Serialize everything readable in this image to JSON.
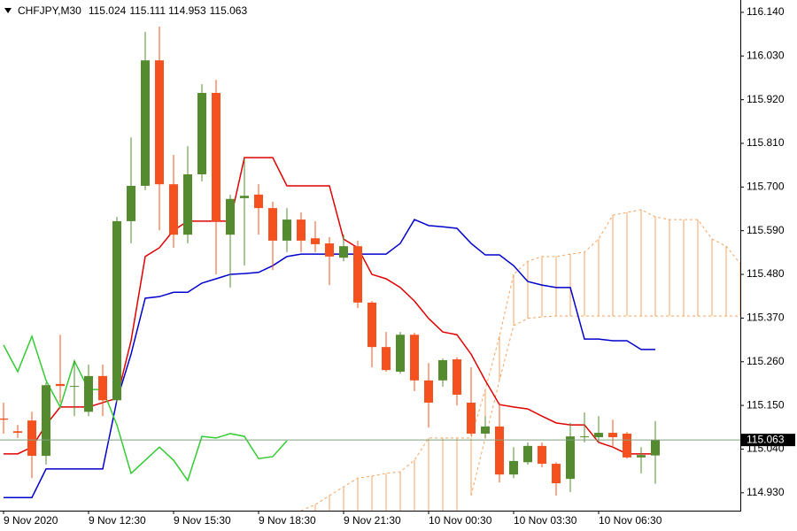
{
  "chart_data": {
    "type": "candlestick",
    "title": "CHFJPY,M30",
    "title_values": [
      115.024,
      115.111,
      114.953,
      115.063
    ],
    "categories": [
      "9 Nov 2020",
      null,
      null,
      null,
      null,
      null,
      "9 Nov 12:30",
      null,
      null,
      null,
      null,
      null,
      "9 Nov 15:30",
      null,
      null,
      null,
      null,
      null,
      "9 Nov 18:30",
      null,
      null,
      null,
      null,
      null,
      "9 Nov 21:30",
      null,
      null,
      null,
      null,
      null,
      "10 Nov 00:30",
      null,
      null,
      null,
      null,
      null,
      "10 Nov 03:30",
      null,
      null,
      null,
      null,
      null,
      "10 Nov 06:30",
      null,
      null,
      null,
      null,
      null,
      null,
      null,
      null,
      null,
      null
    ],
    "open": [
      115.117,
      115.085,
      115.112,
      115.023,
      115.204,
      115.197,
      115.134,
      115.224,
      115.163,
      115.614,
      115.703,
      116.019,
      115.707,
      115.58,
      115.732,
      115.937,
      115.58,
      115.672,
      115.681,
      115.647,
      115.565,
      115.618,
      115.571,
      115.558,
      115.522,
      115.551,
      115.409,
      115.297,
      115.235,
      115.328,
      115.213,
      115.213,
      115.266,
      115.157,
      115.079,
      115.097,
      114.976,
      115.007,
      115.048,
      115.003,
      114.965,
      115.07,
      115.07,
      115.081,
      115.079,
      115.019,
      115.024,
      null,
      null,
      null,
      null,
      null,
      null
    ],
    "high": [
      115.157,
      115.101,
      115.134,
      115.208,
      115.328,
      115.262,
      115.253,
      115.253,
      115.625,
      115.825,
      116.091,
      116.104,
      115.781,
      115.803,
      115.959,
      115.97,
      115.681,
      115.77,
      115.707,
      115.663,
      115.647,
      115.636,
      115.614,
      115.574,
      115.58,
      115.565,
      115.413,
      115.335,
      115.335,
      115.333,
      115.257,
      115.268,
      115.271,
      115.246,
      115.123,
      115.157,
      115.045,
      115.057,
      115.057,
      115.007,
      115.106,
      115.132,
      115.123,
      115.114,
      115.083,
      115.045,
      115.111,
      null,
      null,
      null,
      null,
      null,
      null
    ],
    "low": [
      115.079,
      115.068,
      114.967,
      115.001,
      115.157,
      115.123,
      115.123,
      115.123,
      115.157,
      115.558,
      115.692,
      115.591,
      115.547,
      115.558,
      115.714,
      115.48,
      115.447,
      115.502,
      115.58,
      115.491,
      115.536,
      115.536,
      115.536,
      115.453,
      115.513,
      115.395,
      115.246,
      115.235,
      115.23,
      115.186,
      115.094,
      115.197,
      115.15,
      115.074,
      115.068,
      114.956,
      114.967,
      115.001,
      114.994,
      114.923,
      114.932,
      115.057,
      115.057,
      115.048,
      115.016,
      114.979,
      114.953,
      null,
      null,
      null,
      null,
      null,
      null
    ],
    "close": [
      115.114,
      115.081,
      115.023,
      115.201,
      115.199,
      115.199,
      115.224,
      115.163,
      115.614,
      115.703,
      116.019,
      115.707,
      115.58,
      115.732,
      115.937,
      115.614,
      115.67,
      115.678,
      115.647,
      115.565,
      115.618,
      115.565,
      115.556,
      115.525,
      115.551,
      115.409,
      115.297,
      115.239,
      115.328,
      115.213,
      115.157,
      115.264,
      115.177,
      115.079,
      115.097,
      114.976,
      115.01,
      115.048,
      115.003,
      114.954,
      115.072,
      115.072,
      115.081,
      115.07,
      115.019,
      115.025,
      115.063,
      null,
      null,
      null,
      null,
      null,
      null
    ],
    "up_color": "#558b2f",
    "down_color": "#f4511e",
    "lines": [
      {
        "color": "#e00000",
        "values": [
          115.028,
          115.028,
          115.045,
          115.101,
          115.146,
          115.146,
          115.146,
          115.157,
          115.168,
          115.313,
          115.525,
          115.547,
          115.591,
          115.614,
          115.614,
          115.614,
          115.614,
          115.774,
          115.774,
          115.774,
          115.703,
          115.703,
          115.703,
          115.703,
          115.569,
          115.547,
          115.48,
          115.469,
          115.447,
          115.413,
          115.369,
          115.335,
          115.328,
          115.279,
          115.213,
          115.152,
          115.146,
          115.141,
          115.123,
          115.106,
          115.101,
          115.101,
          115.057,
          115.045,
          115.028,
          115.028,
          115.028,
          null,
          null,
          null,
          null,
          null,
          null
        ]
      },
      {
        "color": "#0000cc",
        "values": [
          114.918,
          114.918,
          114.918,
          114.99,
          114.99,
          114.99,
          114.99,
          114.99,
          115.163,
          115.279,
          115.42,
          115.424,
          115.435,
          115.435,
          115.458,
          115.469,
          115.48,
          115.482,
          115.485,
          115.502,
          115.525,
          115.531,
          115.531,
          115.531,
          115.531,
          115.531,
          115.531,
          115.531,
          115.558,
          115.618,
          115.603,
          115.6,
          115.596,
          115.558,
          115.529,
          115.529,
          115.502,
          115.462,
          115.453,
          115.447,
          115.447,
          115.317,
          115.317,
          115.313,
          115.313,
          115.291,
          115.291,
          null,
          null,
          null,
          null,
          null,
          null
        ]
      },
      {
        "color": "#33cc33",
        "values": [
          115.302,
          115.235,
          115.324,
          115.213,
          115.146,
          115.262,
          115.19,
          115.19,
          115.101,
          114.979,
          115.012,
          115.045,
          115.012,
          114.961,
          115.072,
          115.068,
          115.079,
          115.072,
          115.016,
          115.021,
          115.061,
          null,
          null,
          null,
          null,
          null,
          null,
          null,
          null,
          null,
          null,
          null,
          null,
          null,
          null,
          null,
          null,
          null,
          null,
          null,
          null,
          null,
          null,
          null,
          null,
          null,
          null,
          null,
          null,
          null,
          null,
          null,
          null
        ]
      }
    ],
    "cloud": {
      "color": "#f4a460",
      "span_a": [
        null,
        null,
        null,
        null,
        null,
        null,
        null,
        null,
        null,
        null,
        null,
        null,
        null,
        null,
        null,
        null,
        null,
        null,
        null,
        null,
        null,
        114.885,
        114.9,
        114.923,
        114.945,
        114.967,
        114.972,
        114.979,
        114.983,
        115.012,
        115.068,
        115.068,
        115.068,
        115.068,
        115.19,
        115.324,
        115.48,
        115.513,
        115.525,
        115.525,
        115.531,
        115.536,
        115.569,
        115.629,
        115.636,
        115.643,
        115.625,
        115.618,
        115.618,
        115.618,
        115.569,
        115.551,
        115.507
      ],
      "span_b": [
        null,
        null,
        null,
        null,
        null,
        null,
        null,
        null,
        null,
        null,
        null,
        null,
        null,
        null,
        null,
        null,
        null,
        null,
        null,
        null,
        null,
        null,
        null,
        null,
        null,
        null,
        null,
        null,
        null,
        null,
        null,
        null,
        null,
        114.923,
        115.068,
        115.213,
        115.351,
        115.369,
        115.373,
        115.375,
        115.375,
        115.375,
        115.375,
        115.375,
        115.375,
        115.375,
        115.375,
        115.375,
        115.375,
        115.375,
        115.375,
        115.375,
        115.375
      ]
    },
    "current_price": {
      "value": 115.063,
      "label": "115.063"
    },
    "current_price_color": "#7f9f7f",
    "ylim": [
      114.885,
      116.171
    ],
    "yticks": [
      {
        "value": 114.93,
        "label": "114.930"
      },
      {
        "value": 115.04,
        "label": "115.040"
      },
      {
        "value": 115.15,
        "label": "115.150"
      },
      {
        "value": 115.26,
        "label": "115.260"
      },
      {
        "value": 115.37,
        "label": "115.370"
      },
      {
        "value": 115.48,
        "label": "115.480"
      },
      {
        "value": 115.59,
        "label": "115.590"
      },
      {
        "value": 115.7,
        "label": "115.700"
      },
      {
        "value": 115.81,
        "label": "115.810"
      },
      {
        "value": 115.92,
        "label": "115.920"
      },
      {
        "value": 116.03,
        "label": "116.030"
      },
      {
        "value": 116.14,
        "label": "116.140"
      }
    ]
  }
}
